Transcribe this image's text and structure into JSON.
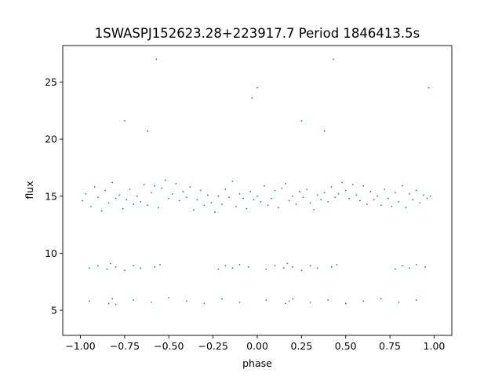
{
  "chart_data": {
    "type": "scatter",
    "title": "1SWASPJ152623.28+223917.7 Period 1846413.5s",
    "xlabel": "phase",
    "ylabel": "flux",
    "xlim": [
      -1.1,
      1.1
    ],
    "ylim": [
      2.8,
      28.2
    ],
    "x_ticks": [
      -1.0,
      -0.75,
      -0.5,
      -0.25,
      0.0,
      0.25,
      0.5,
      0.75,
      1.0
    ],
    "x_tick_labels": [
      "−1.00",
      "−0.75",
      "−0.50",
      "−0.25",
      "0.00",
      "0.25",
      "0.50",
      "0.75",
      "1.00"
    ],
    "y_ticks": [
      5,
      10,
      15,
      20,
      25
    ],
    "y_tick_labels": [
      "5",
      "10",
      "15",
      "20",
      "25"
    ],
    "grid": false,
    "legend": "none",
    "marker_color": "#1f77b4",
    "series": [
      {
        "x": [
          -0.99,
          -0.97,
          -0.94,
          -0.92,
          -0.9,
          -0.88,
          -0.86,
          -0.84,
          -0.82,
          -0.8,
          -0.78,
          -0.76,
          -0.74,
          -0.72,
          -0.7,
          -0.68,
          -0.66,
          -0.64,
          -0.62,
          -0.6,
          -0.58,
          -0.56,
          -0.54,
          -0.52,
          -0.5,
          -0.48,
          -0.46,
          -0.44,
          -0.42,
          -0.4,
          -0.38,
          -0.36,
          -0.34,
          -0.32,
          -0.3,
          -0.28,
          -0.26,
          -0.24,
          -0.22,
          -0.2,
          -0.18,
          -0.16,
          -0.14,
          -0.12,
          -0.1,
          -0.08,
          -0.06,
          -0.04,
          -0.02,
          0.0,
          0.02,
          0.04,
          0.06,
          0.08,
          0.1,
          0.12,
          0.14,
          0.16,
          0.18,
          0.2,
          0.22,
          0.24,
          0.26,
          0.28,
          0.3,
          0.32,
          0.34,
          0.36,
          0.38,
          0.4,
          0.42,
          0.44,
          0.46,
          0.48,
          0.5,
          0.52,
          0.54,
          0.56,
          0.58,
          0.6,
          0.62,
          0.64,
          0.66,
          0.68,
          0.7,
          0.72,
          0.74,
          0.76,
          0.78,
          0.8,
          0.82,
          0.84,
          0.86,
          0.88,
          0.9,
          0.92,
          0.94,
          0.96,
          0.98,
          -0.95,
          -0.9,
          -0.85,
          -0.83,
          -0.8,
          -0.75,
          -0.7,
          -0.66,
          -0.58,
          -0.55,
          -0.22,
          -0.18,
          -0.14,
          -0.1,
          -0.05,
          0.05,
          0.1,
          0.15,
          0.17,
          0.2,
          0.25,
          0.3,
          0.34,
          0.42,
          0.45,
          0.78,
          0.82,
          0.86,
          0.9,
          0.95,
          -0.95,
          -0.84,
          -0.82,
          -0.8,
          -0.7,
          -0.6,
          -0.5,
          -0.4,
          -0.3,
          -0.2,
          -0.1,
          0.05,
          0.16,
          0.18,
          0.2,
          0.3,
          0.4,
          0.5,
          0.6,
          0.7,
          0.8,
          0.9,
          -0.57,
          0.43,
          -0.75,
          0.25,
          -0.62,
          0.38,
          0.0,
          0.97,
          -0.03
        ],
        "y": [
          14.6,
          15.2,
          14.1,
          15.8,
          14.9,
          13.7,
          15.5,
          14.4,
          16.2,
          14.8,
          15.1,
          13.9,
          14.7,
          15.6,
          14.3,
          15.0,
          14.5,
          16.0,
          14.2,
          15.3,
          15.9,
          14.0,
          15.7,
          16.4,
          14.8,
          15.2,
          16.1,
          14.6,
          15.4,
          14.9,
          15.8,
          13.8,
          14.7,
          15.5,
          14.2,
          15.1,
          14.4,
          13.6,
          15.0,
          14.3,
          15.6,
          14.9,
          16.3,
          14.1,
          15.2,
          14.8,
          13.9,
          15.4,
          14.7,
          15.0,
          14.5,
          15.9,
          14.2,
          14.8,
          15.5,
          14.0,
          15.7,
          16.1,
          14.6,
          15.0,
          14.3,
          15.4,
          14.9,
          15.6,
          14.4,
          13.8,
          15.1,
          14.7,
          15.3,
          14.5,
          15.8,
          14.9,
          15.2,
          16.2,
          15.5,
          14.8,
          16.0,
          15.1,
          14.6,
          15.9,
          14.3,
          15.4,
          14.7,
          15.0,
          14.2,
          15.6,
          14.8,
          14.1,
          15.3,
          14.5,
          15.9,
          14.0,
          15.2,
          14.7,
          15.5,
          14.4,
          15.1,
          14.8,
          15.0,
          8.7,
          8.9,
          8.6,
          9.1,
          8.8,
          8.5,
          8.9,
          8.7,
          8.8,
          9.0,
          8.6,
          8.9,
          8.7,
          9.0,
          8.8,
          8.6,
          8.9,
          8.7,
          9.1,
          8.8,
          8.5,
          8.9,
          8.7,
          8.8,
          9.0,
          8.6,
          8.9,
          8.7,
          9.0,
          8.8,
          5.8,
          5.6,
          6.0,
          5.5,
          5.9,
          5.7,
          6.1,
          5.8,
          5.6,
          6.0,
          5.7,
          5.9,
          5.6,
          5.8,
          6.0,
          5.7,
          5.9,
          5.6,
          5.8,
          6.0,
          5.7,
          5.9,
          27.0,
          27.0,
          21.6,
          21.6,
          20.7,
          20.7,
          24.5,
          24.5,
          23.6
        ]
      }
    ]
  }
}
